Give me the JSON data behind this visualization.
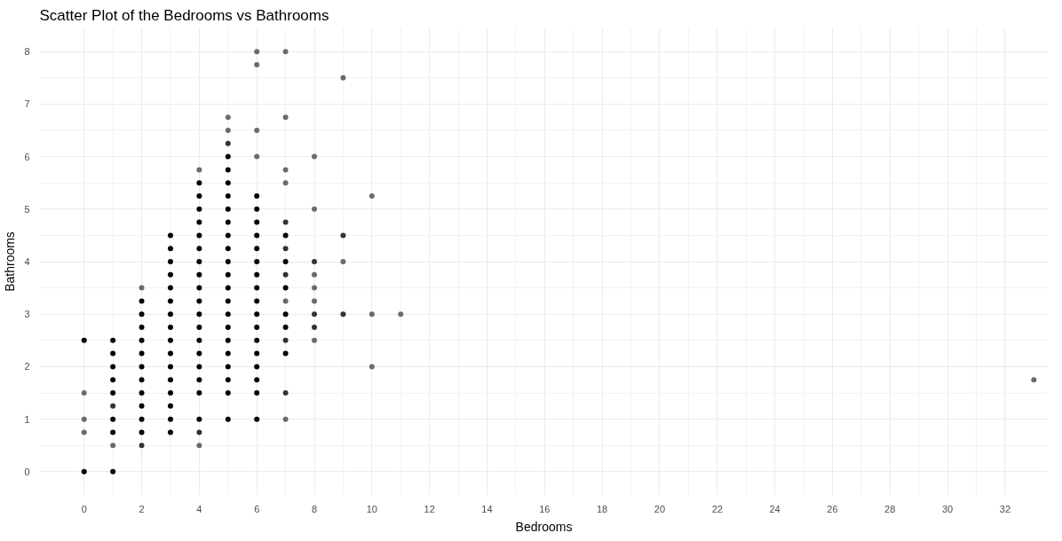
{
  "chart_data": {
    "type": "scatter",
    "title": "Scatter Plot of the Bedrooms vs Bathrooms",
    "xlabel": "Bedrooms",
    "ylabel": "Bathrooms",
    "xlim": [
      -1.55,
      33.5
    ],
    "ylim": [
      -0.45,
      8.45
    ],
    "xticks": [
      0,
      2,
      4,
      6,
      8,
      10,
      12,
      14,
      16,
      18,
      20,
      22,
      24,
      26,
      28,
      30,
      32
    ],
    "yticks": [
      0,
      1,
      2,
      3,
      4,
      5,
      6,
      7,
      8
    ],
    "grid": true,
    "marker": "circle",
    "series": [
      {
        "color": "#000000",
        "x": [
          0,
          0,
          1,
          1,
          1,
          1,
          1,
          1,
          1,
          1,
          2,
          2,
          2,
          2,
          2,
          2,
          2,
          2,
          2,
          2,
          2,
          3,
          3,
          3,
          3,
          3,
          3,
          3,
          3,
          3,
          3,
          3,
          3,
          3,
          3,
          3,
          3,
          4,
          4,
          4,
          4,
          4,
          4,
          4,
          4,
          4,
          4,
          4,
          4,
          4,
          4,
          4,
          4,
          4,
          4,
          5,
          5,
          5,
          5,
          5,
          5,
          5,
          5,
          5,
          5,
          5,
          5,
          5,
          5,
          5,
          5,
          5,
          5,
          5,
          5,
          6,
          6,
          6,
          6,
          6,
          6,
          6,
          6,
          6,
          6,
          6,
          6,
          6,
          6,
          6,
          6,
          6,
          7,
          7,
          7,
          7,
          7,
          7
        ],
        "values": [
          0,
          2.5,
          0,
          0.75,
          1,
          1.5,
          1.75,
          2,
          2.25,
          2.5,
          0.75,
          1,
          1.25,
          1.5,
          1.75,
          2,
          2.25,
          2.5,
          2.75,
          3,
          3.25,
          0.75,
          1,
          1.25,
          1.5,
          1.75,
          2,
          2.25,
          2.5,
          2.75,
          3,
          3.25,
          3.5,
          3.75,
          4,
          4.25,
          4.5,
          1,
          1.5,
          1.75,
          2,
          2.25,
          2.5,
          2.75,
          3,
          3.25,
          3.5,
          3.75,
          4,
          4.25,
          4.5,
          4.75,
          5,
          5.25,
          5.5,
          1,
          1.5,
          1.75,
          2,
          2.25,
          2.5,
          2.75,
          3,
          3.25,
          3.5,
          3.75,
          4,
          4.25,
          4.5,
          4.75,
          5,
          5.25,
          5.5,
          5.75,
          6,
          1,
          1.5,
          1.75,
          2,
          2.25,
          2.5,
          2.75,
          3,
          3.25,
          3.5,
          3.75,
          4,
          4.25,
          4.5,
          4.75,
          5,
          5.25,
          2.25,
          2.75,
          3,
          3.5,
          4,
          4.5
        ]
      },
      {
        "color": "#333333",
        "x": [
          1,
          2,
          4,
          5,
          7,
          7,
          7,
          7,
          7,
          8,
          8,
          8,
          9,
          9
        ],
        "values": [
          1.25,
          0.5,
          0.75,
          6.25,
          1.5,
          2.5,
          3.75,
          4.25,
          4.75,
          2.75,
          3,
          4,
          3,
          4.5
        ]
      },
      {
        "color": "#6b6b6b",
        "x": [
          0,
          0,
          0,
          1,
          2,
          4,
          4,
          5,
          5,
          6,
          6,
          6,
          6,
          7,
          7,
          7,
          7,
          7,
          7,
          8,
          8,
          8,
          8,
          8,
          8,
          9,
          9,
          10,
          10,
          10,
          11,
          33
        ],
        "values": [
          0.75,
          1,
          1.5,
          0.5,
          3.5,
          0.5,
          5.75,
          6.5,
          6.75,
          6,
          6.5,
          7.75,
          8,
          1,
          3.25,
          5.5,
          5.75,
          6.75,
          8,
          2.5,
          3.25,
          3.5,
          3.75,
          5,
          6,
          4,
          7.5,
          2,
          3,
          5.25,
          3,
          1.75
        ]
      }
    ]
  }
}
